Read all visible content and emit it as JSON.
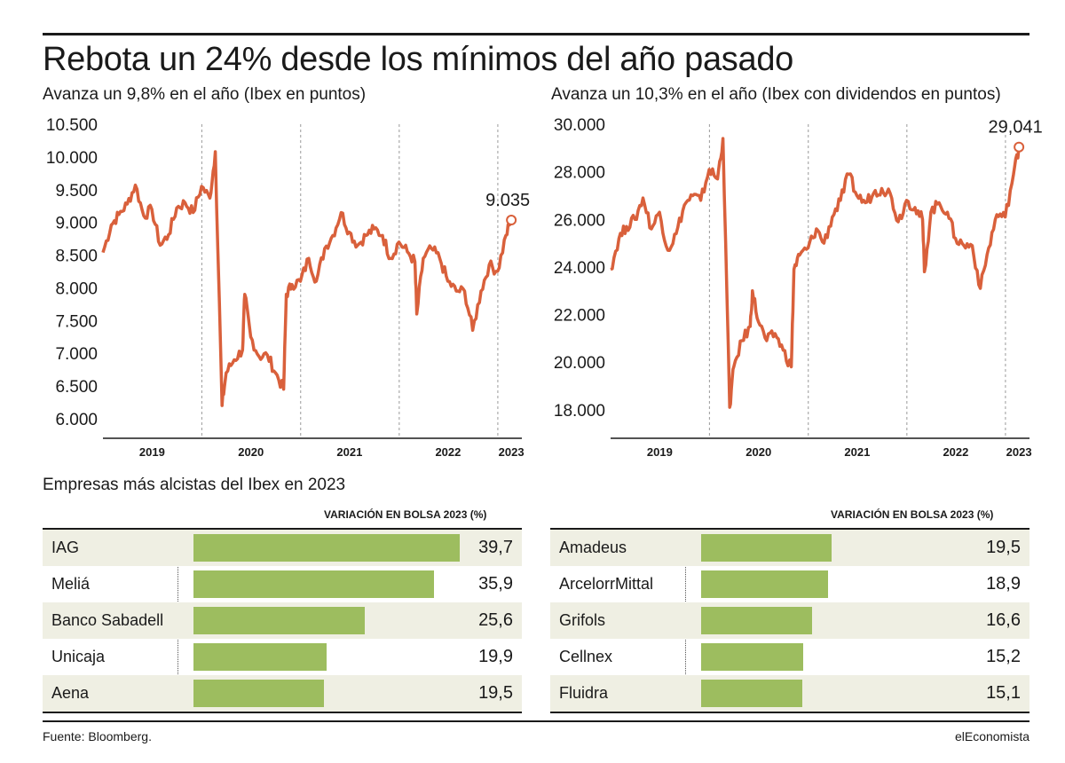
{
  "headline": "Rebota un 24% desde los mínimos del año pasado",
  "colors": {
    "line": "#d9603b",
    "bar": "#9dbd5f",
    "row_shade": "#efefe3"
  },
  "chart_data": [
    {
      "type": "line",
      "title": "Avanza un 9,8% en el año (Ibex en puntos)",
      "yticks": [
        "10.500",
        "10.000",
        "9.500",
        "9.000",
        "8.500",
        "8.000",
        "7.500",
        "7.000",
        "6.500",
        "6.000"
      ],
      "ylim": [
        5700,
        10500
      ],
      "xticks": [
        "2019",
        "2020",
        "2021",
        "2022",
        "2023"
      ],
      "grid": "vertical dashed at year boundaries",
      "last_label": "9.035",
      "series": [
        {
          "x": [
            "2018-12-31",
            "2019-01-31",
            "2019-02-28",
            "2019-03-31",
            "2019-04-30",
            "2019-05-31",
            "2019-06-30",
            "2019-07-31",
            "2019-08-31",
            "2019-09-30",
            "2019-10-31",
            "2019-11-30",
            "2019-12-31",
            "2020-01-31",
            "2020-02-20",
            "2020-03-16",
            "2020-03-31",
            "2020-04-30",
            "2020-05-31",
            "2020-06-08",
            "2020-06-30",
            "2020-07-31",
            "2020-08-31",
            "2020-09-30",
            "2020-10-30",
            "2020-11-09",
            "2020-11-30",
            "2020-12-31",
            "2021-01-31",
            "2021-02-28",
            "2021-03-31",
            "2021-04-30",
            "2021-05-31",
            "2021-06-30",
            "2021-07-31",
            "2021-08-31",
            "2021-09-30",
            "2021-10-31",
            "2021-11-30",
            "2021-12-31",
            "2022-01-31",
            "2022-02-28",
            "2022-03-07",
            "2022-03-31",
            "2022-04-30",
            "2022-05-31",
            "2022-06-30",
            "2022-07-31",
            "2022-08-31",
            "2022-09-30",
            "2022-10-31",
            "2022-11-30",
            "2022-12-31",
            "2023-01-31",
            "2023-02-20"
          ],
          "y": [
            8540,
            8960,
            9120,
            9280,
            9570,
            9100,
            9200,
            8650,
            8810,
            9220,
            9300,
            9150,
            9550,
            9370,
            10080,
            6200,
            6700,
            6900,
            7050,
            7900,
            7250,
            6950,
            6970,
            6700,
            6450,
            7900,
            8050,
            8100,
            8450,
            8100,
            8600,
            8800,
            9150,
            8850,
            8650,
            8800,
            8900,
            8800,
            8450,
            8700,
            8550,
            8400,
            7600,
            8450,
            8600,
            8450,
            8100,
            7950,
            7950,
            7350,
            7950,
            8350,
            8250,
            8800,
            9035
          ]
        }
      ]
    },
    {
      "type": "line",
      "title": "Avanza un 10,3% en el año (Ibex con dividendos en puntos)",
      "yticks": [
        "30.000",
        "28.000",
        "26.000",
        "24.000",
        "22.000",
        "20.000",
        "18.000"
      ],
      "ylim": [
        16800,
        30000
      ],
      "xticks": [
        "2019",
        "2020",
        "2021",
        "2022",
        "2023"
      ],
      "grid": "vertical dashed at year boundaries",
      "last_label": "29,041",
      "series": [
        {
          "x": [
            "2018-12-31",
            "2019-01-31",
            "2019-02-28",
            "2019-03-31",
            "2019-04-30",
            "2019-05-31",
            "2019-06-30",
            "2019-07-31",
            "2019-08-31",
            "2019-09-30",
            "2019-10-31",
            "2019-11-30",
            "2019-12-31",
            "2020-01-31",
            "2020-02-20",
            "2020-03-16",
            "2020-03-31",
            "2020-04-30",
            "2020-05-31",
            "2020-06-08",
            "2020-06-30",
            "2020-07-31",
            "2020-08-31",
            "2020-09-30",
            "2020-10-30",
            "2020-11-09",
            "2020-11-30",
            "2020-12-31",
            "2021-01-31",
            "2021-02-28",
            "2021-03-31",
            "2021-04-30",
            "2021-05-31",
            "2021-06-30",
            "2021-07-31",
            "2021-08-31",
            "2021-09-30",
            "2021-10-31",
            "2021-11-30",
            "2021-12-31",
            "2022-01-31",
            "2022-02-28",
            "2022-03-07",
            "2022-03-31",
            "2022-04-30",
            "2022-05-31",
            "2022-06-30",
            "2022-07-31",
            "2022-08-31",
            "2022-09-30",
            "2022-10-31",
            "2022-11-30",
            "2022-12-31",
            "2023-01-31",
            "2023-02-20"
          ],
          "y": [
            23900,
            25200,
            25700,
            26000,
            26900,
            25600,
            26300,
            24700,
            25400,
            26600,
            27000,
            26800,
            28100,
            27700,
            29400,
            18100,
            19800,
            20900,
            21500,
            23000,
            21700,
            20900,
            21200,
            20500,
            19800,
            23900,
            24500,
            24800,
            25600,
            25000,
            26100,
            26800,
            27900,
            27000,
            26700,
            27100,
            27300,
            27100,
            25900,
            26800,
            26500,
            26000,
            23800,
            26300,
            26700,
            26300,
            25200,
            24900,
            24900,
            23100,
            24800,
            26200,
            26100,
            27900,
            29041
          ]
        }
      ]
    }
  ],
  "section_title": "Empresas más alcistas del Ibex en 2023",
  "column_header": "VARIACIÓN EN  BOLSA 2023 (%)",
  "bars_max": 39.7,
  "table_left": [
    {
      "name": "IAG",
      "value": 39.7,
      "label": "39,7"
    },
    {
      "name": "Meliá",
      "value": 35.9,
      "label": "35,9"
    },
    {
      "name": "Banco Sabadell",
      "value": 25.6,
      "label": "25,6"
    },
    {
      "name": "Unicaja",
      "value": 19.9,
      "label": "19,9"
    },
    {
      "name": "Aena",
      "value": 19.5,
      "label": "19,5"
    }
  ],
  "table_right": [
    {
      "name": "Amadeus",
      "value": 19.5,
      "label": "19,5"
    },
    {
      "name": "ArcelorrMittal",
      "value": 18.9,
      "label": "18,9"
    },
    {
      "name": "Grifols",
      "value": 16.6,
      "label": "16,6"
    },
    {
      "name": "Cellnex",
      "value": 15.2,
      "label": "15,2"
    },
    {
      "name": "Fluidra",
      "value": 15.1,
      "label": "15,1"
    }
  ],
  "footer": {
    "source": "Fuente: Bloomberg.",
    "brand": "elEconomista"
  }
}
